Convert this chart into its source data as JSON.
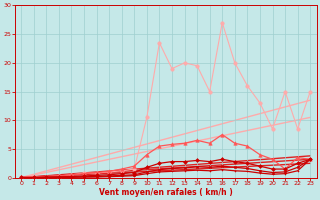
{
  "xlabel": "Vent moyen/en rafales ( km/h )",
  "xlim": [
    -0.5,
    23.5
  ],
  "ylim": [
    0,
    30
  ],
  "xticks": [
    0,
    1,
    2,
    3,
    4,
    5,
    6,
    7,
    8,
    9,
    10,
    11,
    12,
    13,
    14,
    15,
    16,
    17,
    18,
    19,
    20,
    21,
    22,
    23
  ],
  "yticks": [
    0,
    5,
    10,
    15,
    20,
    25,
    30
  ],
  "background_color": "#c5e8e8",
  "grid_color": "#9fcfcf",
  "axis_color": "#cc0000",
  "series": {
    "reg_light1": {
      "x": [
        0,
        23
      ],
      "y": [
        0,
        10.5
      ],
      "color": "#ffaaaa",
      "lw": 1.0
    },
    "reg_light2": {
      "x": [
        0,
        23
      ],
      "y": [
        0,
        13.5
      ],
      "color": "#ffaaaa",
      "lw": 1.0
    },
    "reg_dark1": {
      "x": [
        0,
        23
      ],
      "y": [
        0,
        3.2
      ],
      "color": "#dd2222",
      "lw": 1.0
    },
    "reg_dark2": {
      "x": [
        0,
        23
      ],
      "y": [
        0,
        2.5
      ],
      "color": "#dd2222",
      "lw": 1.0
    },
    "reg_dark3": {
      "x": [
        0,
        23
      ],
      "y": [
        0,
        3.8
      ],
      "color": "#dd2222",
      "lw": 1.0
    },
    "spiky_light": {
      "x": [
        0,
        1,
        2,
        3,
        4,
        5,
        6,
        7,
        8,
        9,
        10,
        11,
        12,
        13,
        14,
        15,
        16,
        17,
        18,
        19,
        20,
        21,
        22,
        23
      ],
      "y": [
        0.2,
        0.2,
        0.2,
        0.3,
        0.5,
        0.8,
        0.8,
        1.0,
        1.2,
        1.5,
        10.5,
        23.5,
        19.0,
        20.0,
        19.5,
        15.0,
        27.0,
        20.0,
        16.0,
        13.0,
        8.5,
        15.0,
        8.5,
        15.0
      ],
      "color": "#ffaaaa",
      "lw": 0.8,
      "marker": "o",
      "ms": 2.5
    },
    "med_line": {
      "x": [
        0,
        1,
        2,
        3,
        4,
        5,
        6,
        7,
        8,
        9,
        10,
        11,
        12,
        13,
        14,
        15,
        16,
        17,
        18,
        19,
        20,
        21,
        22,
        23
      ],
      "y": [
        0.1,
        0.1,
        0.2,
        0.3,
        0.5,
        0.7,
        0.9,
        1.1,
        1.5,
        2.0,
        4.0,
        5.5,
        5.8,
        6.0,
        6.5,
        6.0,
        7.5,
        6.0,
        5.5,
        4.0,
        3.2,
        1.5,
        3.5,
        3.2
      ],
      "color": "#ff5555",
      "lw": 0.9,
      "marker": "^",
      "ms": 2.5
    },
    "dark_line1": {
      "x": [
        0,
        1,
        2,
        3,
        4,
        5,
        6,
        7,
        8,
        9,
        10,
        11,
        12,
        13,
        14,
        15,
        16,
        17,
        18,
        19,
        20,
        21,
        22,
        23
      ],
      "y": [
        0.05,
        0.05,
        0.1,
        0.15,
        0.2,
        0.3,
        0.4,
        0.5,
        0.7,
        0.9,
        1.8,
        2.5,
        2.8,
        2.8,
        3.0,
        2.8,
        3.2,
        2.8,
        2.5,
        2.0,
        1.5,
        1.5,
        2.5,
        3.2
      ],
      "color": "#cc0000",
      "lw": 0.9,
      "marker": "D",
      "ms": 2.0
    },
    "dark_line2": {
      "x": [
        0,
        1,
        2,
        3,
        4,
        5,
        6,
        7,
        8,
        9,
        10,
        11,
        12,
        13,
        14,
        15,
        16,
        17,
        18,
        19,
        20,
        21,
        22,
        23
      ],
      "y": [
        0.02,
        0.02,
        0.05,
        0.08,
        0.1,
        0.15,
        0.2,
        0.3,
        0.4,
        0.5,
        1.0,
        1.4,
        1.6,
        1.7,
        1.9,
        1.8,
        2.0,
        1.8,
        1.6,
        1.2,
        0.9,
        1.0,
        1.8,
        3.2
      ],
      "color": "#cc0000",
      "lw": 0.9,
      "marker": "s",
      "ms": 1.5
    },
    "dark_line3": {
      "x": [
        0,
        1,
        2,
        3,
        4,
        5,
        6,
        7,
        8,
        9,
        10,
        11,
        12,
        13,
        14,
        15,
        16,
        17,
        18,
        19,
        20,
        21,
        22,
        23
      ],
      "y": [
        0.01,
        0.01,
        0.02,
        0.04,
        0.06,
        0.1,
        0.12,
        0.18,
        0.25,
        0.35,
        0.7,
        1.0,
        1.1,
        1.2,
        1.3,
        1.2,
        1.4,
        1.2,
        1.1,
        0.8,
        0.6,
        0.7,
        1.2,
        3.2
      ],
      "color": "#cc0000",
      "lw": 0.9,
      "marker": "+",
      "ms": 2.0
    }
  }
}
